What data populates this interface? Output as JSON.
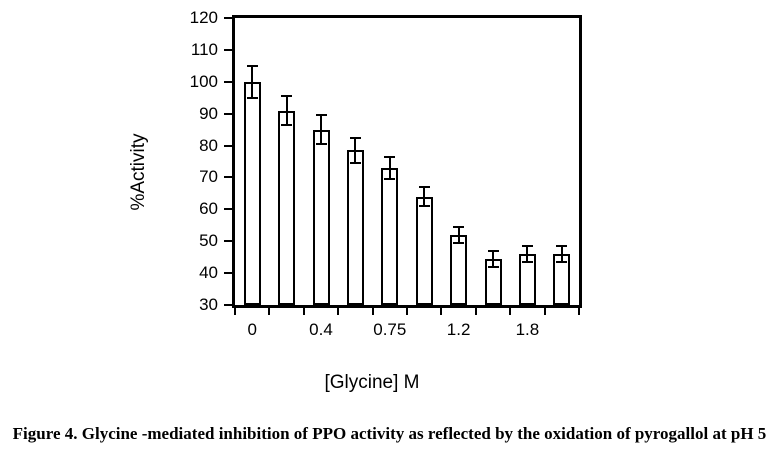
{
  "figure": {
    "caption": "Figure 4. Glycine -mediated inhibition of PPO activity as reflected by the oxidation of pyrogallol at pH 5"
  },
  "chart_data": {
    "type": "bar",
    "title": "",
    "xlabel": "[Glycine] M",
    "ylabel": "%Activity",
    "ylim": [
      30,
      120
    ],
    "ytick_step": 10,
    "yticks": [
      30,
      40,
      50,
      60,
      70,
      80,
      90,
      100,
      110,
      120
    ],
    "categories": [
      "0",
      "",
      "0.4",
      "",
      "0.75",
      "",
      "1.2",
      "",
      "1.8",
      ""
    ],
    "values": [
      100,
      91,
      85,
      78.5,
      73,
      64,
      52,
      44.5,
      46,
      46
    ],
    "errors": [
      5,
      4.5,
      4.5,
      4,
      3.5,
      3,
      2.5,
      2.5,
      2.5,
      2.5
    ],
    "bar_fill": "#ffffff",
    "bar_border": "#000000",
    "axis_color": "#000000",
    "background": "#ffffff",
    "grid": false,
    "legend": false
  }
}
